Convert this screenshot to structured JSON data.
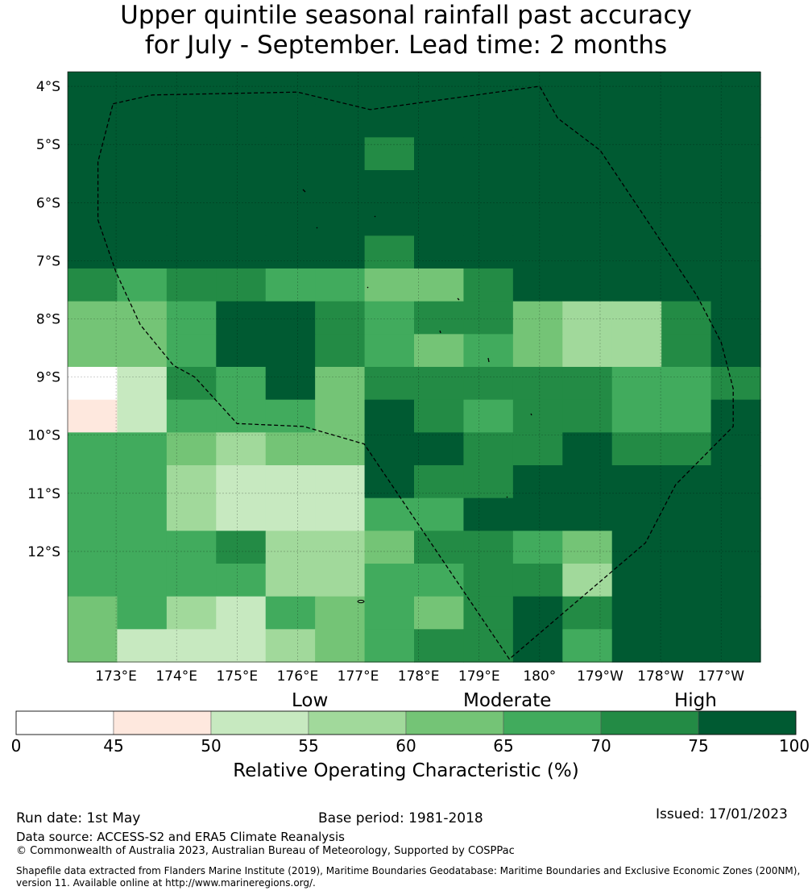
{
  "title": {
    "line1": "Upper quintile seasonal rainfall past accuracy",
    "line2": "for July - September. Lead time: 2 months"
  },
  "map": {
    "lat_labels": [
      "4°S",
      "5°S",
      "6°S",
      "7°S",
      "8°S",
      "9°S",
      "10°S",
      "11°S",
      "12°S"
    ],
    "lon_labels": [
      "173°E",
      "174°E",
      "175°E",
      "176°E",
      "177°E",
      "178°E",
      "179°E",
      "180°",
      "179°W",
      "178°W",
      "177°W"
    ],
    "lon_range_east_deg": [
      172.2,
      183.65
    ],
    "lat_range_deg": [
      -13.9,
      -3.75
    ],
    "land_color": "#000000",
    "boundary_style": "dashed black",
    "cell_colors_by_class": [
      "#ffffff",
      "#fee8de",
      "#c7e9c0",
      "#a1d99b",
      "#74c476",
      "#41ab5d",
      "#238b45",
      "#005a32"
    ],
    "grid_rows_north_to_south": [
      "77777777777777",
      "77777777777777",
      "77777767777777",
      "77777777777777",
      "77777777777777",
      "77777767777777",
      "65665544677777",
      "44577656643367",
      "44577654543367",
      "02657466666556",
      "12555476566557",
      "55434477667667",
      "55322276677777",
      "55322255777777",
      "55563346654777",
      "55553355663777",
      "45325454676777",
      "42223456675777"
    ],
    "zone_boundary_deg": [
      [
        172.95,
        -4.3
      ],
      [
        173.6,
        -4.15
      ],
      [
        176.0,
        -4.1
      ],
      [
        177.2,
        -4.4
      ],
      [
        180.0,
        -4.0
      ],
      [
        180.3,
        -4.55
      ],
      [
        181.0,
        -5.1
      ],
      [
        181.9,
        -6.5
      ],
      [
        182.6,
        -7.6
      ],
      [
        183.0,
        -8.4
      ],
      [
        183.2,
        -9.2
      ],
      [
        183.2,
        -9.85
      ],
      [
        182.25,
        -10.85
      ],
      [
        181.75,
        -11.85
      ],
      [
        179.5,
        -13.85
      ],
      [
        177.1,
        -10.15
      ],
      [
        176.1,
        -9.85
      ],
      [
        175.0,
        -9.8
      ],
      [
        174.3,
        -9.0
      ],
      [
        173.95,
        -8.8
      ],
      [
        173.4,
        -8.1
      ],
      [
        173.0,
        -7.2
      ],
      [
        172.7,
        -6.3
      ],
      [
        172.7,
        -5.3
      ],
      [
        172.95,
        -4.3
      ]
    ]
  },
  "colorbar": {
    "categories": [
      "Low",
      "Moderate",
      "High"
    ],
    "ticks": [
      0,
      45,
      50,
      55,
      60,
      65,
      70,
      75,
      100
    ],
    "label": "Relative Operating Characteristic (%)"
  },
  "footer": {
    "run_date": "Run date: 1st May",
    "base_period": "Base period: 1981-2018",
    "issued": "Issued: 17/01/2023",
    "data_source": "Data source: ACCESS-S2 and ERA5 Climate Reanalysis",
    "copyright": "© Commonwealth of Australia 2023, Australian Bureau of Meteorology, Supported by COSPPac",
    "shapefile": "Shapefile data extracted from Flanders Marine Institute (2019), Maritime Boundaries Geodatabase: Maritime Boundaries and Exclusive Economic Zones (200NM), version 11. Available online at http://www.marineregions.org/."
  }
}
